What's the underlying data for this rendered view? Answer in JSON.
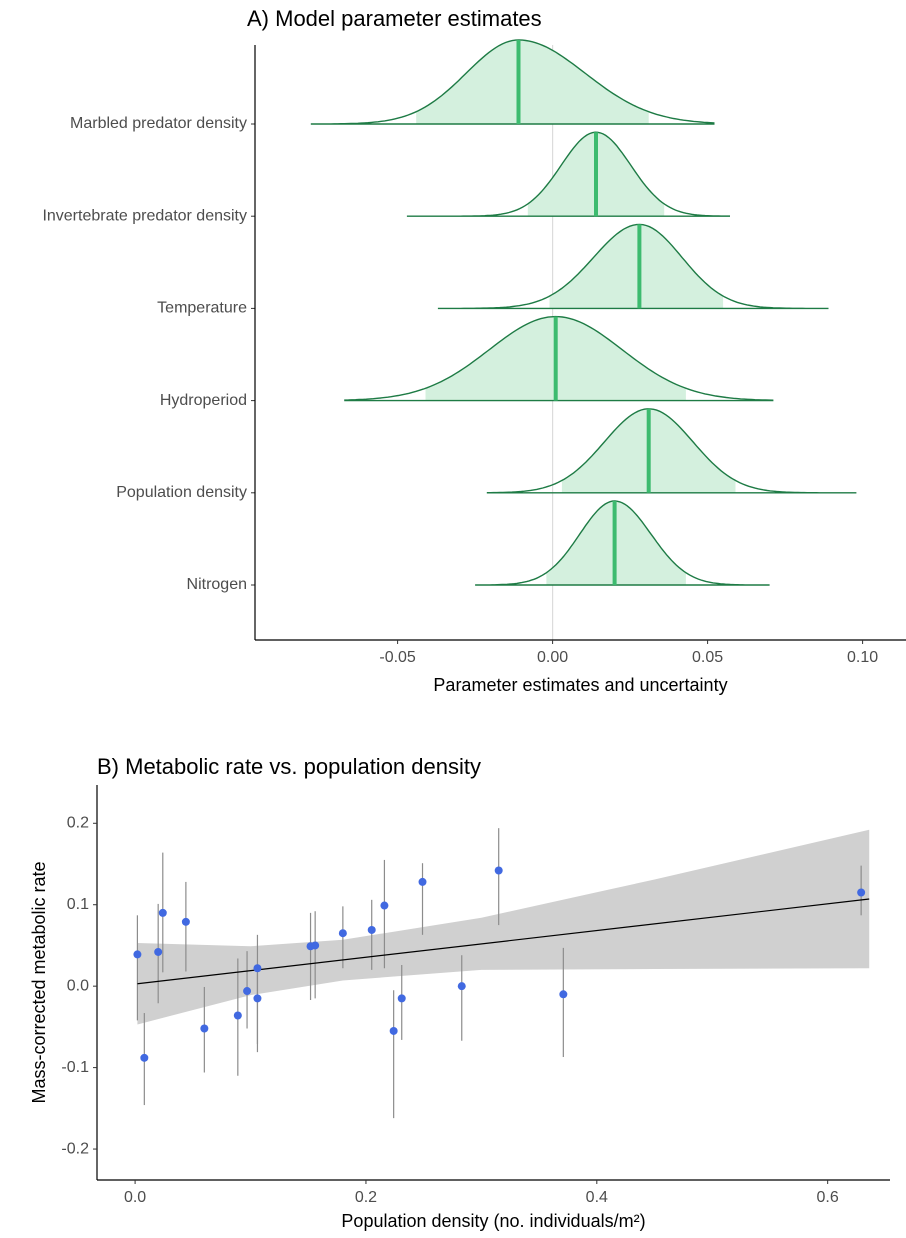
{
  "chart_data": [
    {
      "type": "density",
      "title": "A) Model parameter estimates",
      "x_label": "Parameter estimates and uncertainty",
      "categories": [
        "Marbled predator density",
        "Invertebrate predator density",
        "Temperature",
        "Hydroperiod",
        "Population density",
        "Nitrogen"
      ],
      "values": [
        -0.011,
        0.014,
        0.028,
        0.001,
        0.031,
        0.02
      ],
      "ci_low": [
        -0.044,
        -0.008,
        -0.001,
        -0.041,
        0.003,
        -0.002
      ],
      "ci_high": [
        0.031,
        0.036,
        0.055,
        0.043,
        0.059,
        0.043
      ],
      "range_min": [
        -0.078,
        -0.047,
        -0.037,
        -0.067,
        -0.021,
        -0.025
      ],
      "range_max": [
        0.052,
        0.057,
        0.089,
        0.071,
        0.098,
        0.07
      ],
      "xlim": [
        -0.096,
        0.114
      ],
      "xticks": [
        -0.05,
        {
          "value": 0,
          "label": "0.00"
        },
        0.05,
        {
          "value": 0.1,
          "label": "0.10"
        }
      ],
      "ref_line": 0,
      "color": "#1e7b45",
      "fill": "#d4f0de",
      "median_color": "#3dbb6f"
    },
    {
      "type": "scatter",
      "title": "B) Metabolic rate vs. population density",
      "x_label": "Population density (no. individuals/m²)",
      "y_label": "Mass-corrected metabolic rate",
      "x": [
        0.002,
        0.008,
        0.02,
        0.024,
        0.044,
        0.06,
        0.089,
        0.097,
        0.106,
        0.106,
        0.152,
        0.156,
        0.18,
        0.205,
        0.216,
        0.224,
        0.231,
        0.249,
        0.283,
        0.315,
        0.371,
        0.629
      ],
      "values": [
        0.039,
        -0.088,
        0.042,
        0.09,
        0.079,
        -0.052,
        -0.036,
        -0.006,
        0.022,
        -0.015,
        0.049,
        0.05,
        0.065,
        0.069,
        0.099,
        -0.055,
        -0.015,
        0.128,
        0.0,
        0.142,
        -0.01,
        0.115
      ],
      "lower": [
        -0.042,
        -0.146,
        -0.021,
        0.017,
        0.018,
        -0.106,
        -0.11,
        -0.052,
        -0.071,
        -0.081,
        -0.017,
        -0.015,
        0.022,
        0.02,
        0.022,
        -0.162,
        -0.066,
        0.063,
        -0.067,
        0.075,
        -0.087,
        0.087
      ],
      "upper": [
        0.087,
        -0.033,
        0.101,
        0.164,
        0.128,
        -0.001,
        0.034,
        0.043,
        0.063,
        0.016,
        0.09,
        0.092,
        0.098,
        0.106,
        0.155,
        -0.005,
        0.026,
        0.151,
        0.038,
        0.194,
        0.047,
        0.148
      ],
      "fit_x": [
        0.002,
        0.636
      ],
      "fit_y": [
        0.003,
        0.107
      ],
      "band_x": [
        0.002,
        0.1,
        0.18,
        0.3,
        0.45,
        0.636
      ],
      "band_lower": [
        -0.047,
        -0.011,
        0.007,
        0.02,
        0.021,
        0.022
      ],
      "band_upper": [
        0.053,
        0.049,
        0.057,
        0.084,
        0.131,
        0.192
      ],
      "xlim": [
        -0.033,
        0.654
      ],
      "ylim": [
        -0.238,
        0.247
      ],
      "xticks": [
        {
          "value": 0,
          "label": "0.0"
        },
        0.2,
        0.4,
        0.6
      ],
      "yticks": [
        -0.2,
        -0.1,
        {
          "value": 0,
          "label": "0.0"
        },
        0.1,
        0.2
      ],
      "color": "#4169e1",
      "error_color": "#8c8c8c",
      "band_color": "#d0d0d0",
      "fit_color": "#000000"
    }
  ]
}
